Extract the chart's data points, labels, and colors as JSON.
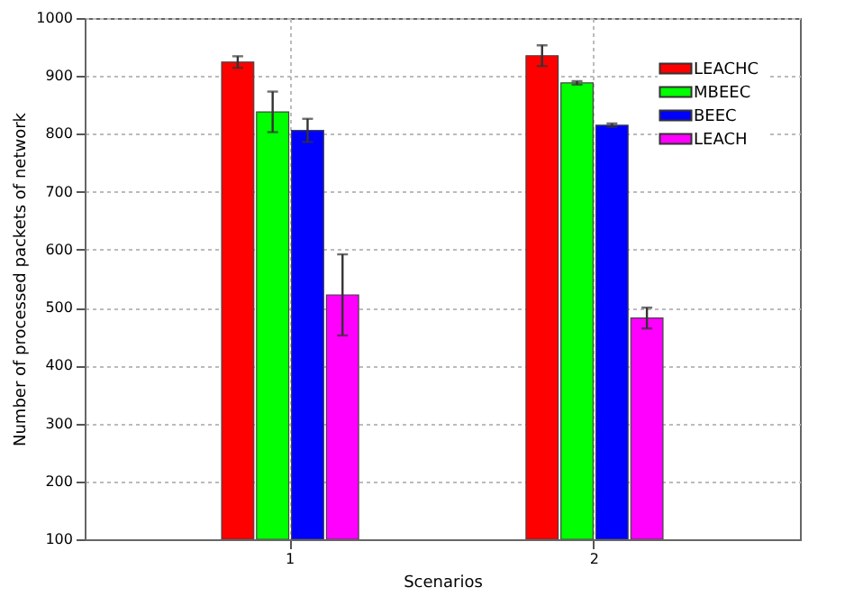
{
  "chart_data": {
    "type": "bar",
    "xlabel": "Scenarios",
    "ylabel": "Number of processed packets of network",
    "categories": [
      "1",
      "2"
    ],
    "series": [
      {
        "name": "LEACHC",
        "color": "#ff0000",
        "values": [
          924,
          935
        ],
        "errors": [
          10,
          18
        ]
      },
      {
        "name": "MBEEC",
        "color": "#00ff00",
        "values": [
          838,
          888
        ],
        "errors": [
          35,
          3
        ]
      },
      {
        "name": "BEEC",
        "color": "#0000ff",
        "values": [
          806,
          815
        ],
        "errors": [
          20,
          3
        ]
      },
      {
        "name": "LEACH",
        "color": "#ff00ff",
        "values": [
          522,
          482
        ],
        "errors": [
          70,
          18
        ]
      }
    ],
    "ylim": [
      100,
      1000
    ],
    "yticks": [
      100,
      200,
      300,
      400,
      500,
      600,
      700,
      800,
      900,
      1000
    ],
    "grid": true,
    "legend": "top right"
  }
}
